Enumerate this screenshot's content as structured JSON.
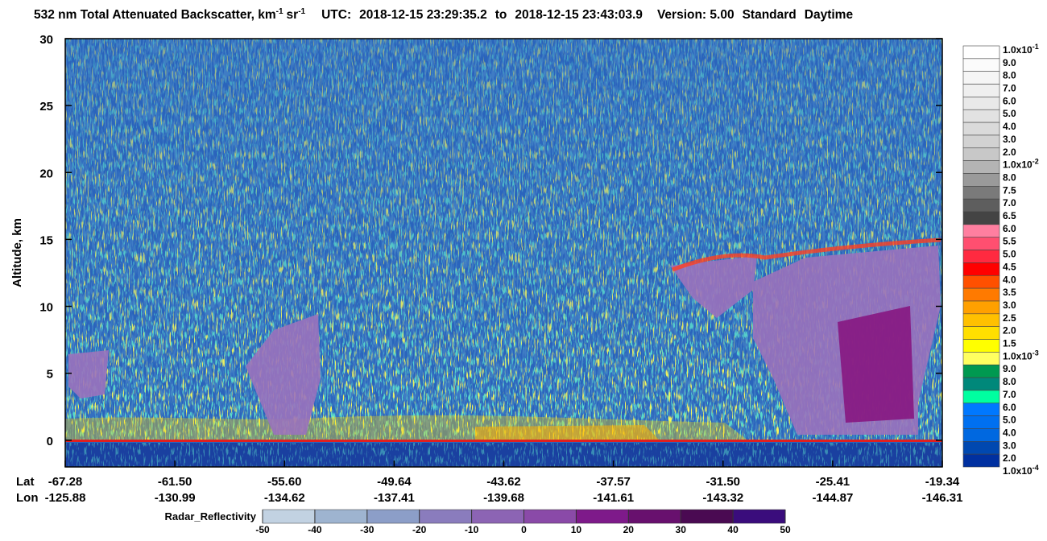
{
  "chart_data": {
    "type": "curtain",
    "title": {
      "main": "532 nm Total Attenuated Backscatter, km",
      "sup1": "-1",
      "unit2": "sr",
      "sup2": "-1",
      "utc": "UTC:",
      "start": "2018-12-15 23:29:35.2",
      "to": "to",
      "end": "2018-12-15 23:43:03.9",
      "version": "Version: 5.00",
      "product": "Standard",
      "daytime": "Daytime"
    },
    "ylabel": "Altitude, km",
    "ylim": [
      -2,
      30
    ],
    "yticks": [
      0,
      5,
      10,
      15,
      20,
      25,
      30
    ],
    "lat_label": "Lat",
    "lon_label": "Lon",
    "lat": [
      "-67.28",
      "-61.50",
      "-55.60",
      "-49.64",
      "-43.62",
      "-37.57",
      "-31.50",
      "-25.41",
      "-19.34"
    ],
    "lon": [
      "-125.88",
      "-130.99",
      "-134.62",
      "-137.41",
      "-139.68",
      "-141.61",
      "-143.32",
      "-144.87",
      "-146.31"
    ],
    "colorbar": {
      "labels": [
        {
          "base": "1.0x10",
          "sup": "-1"
        },
        "9.0",
        "8.0",
        "7.0",
        "6.0",
        "5.0",
        "4.0",
        "3.0",
        "2.0",
        {
          "base": "1.0x10",
          "sup": "-2"
        },
        "8.0",
        "7.5",
        "7.0",
        "6.5",
        "6.0",
        "5.5",
        "5.0",
        "4.5",
        "4.0",
        "3.5",
        "3.0",
        "2.5",
        "2.0",
        "1.5",
        {
          "base": "1.0x10",
          "sup": "-3"
        },
        "9.0",
        "8.0",
        "7.0",
        "6.0",
        "5.0",
        "4.0",
        "3.0",
        "2.0",
        {
          "base": "1.0x10",
          "sup": "-4"
        }
      ],
      "colors": [
        "#ffffff",
        "#fbfbfb",
        "#f5f5f5",
        "#efefef",
        "#e9e9e9",
        "#e2e2e2",
        "#dadada",
        "#d2d2d2",
        "#c8c8c8",
        "#b4b4b4",
        "#9a9a9a",
        "#7a7a7a",
        "#5e5e5e",
        "#444444",
        "#ff7fa0",
        "#ff4f70",
        "#ff2a40",
        "#ff0000",
        "#ff5000",
        "#ff7a00",
        "#ffa000",
        "#ffc000",
        "#ffdf00",
        "#ffff00",
        "#ffff60",
        "#009950",
        "#00887a",
        "#00ffa0",
        "#0078ff",
        "#0070f0",
        "#0068e0",
        "#0048b0",
        "#0030a0"
      ]
    },
    "radar": {
      "label": "Radar_Reflectivity",
      "ticks": [
        -50,
        -40,
        -30,
        -20,
        -10,
        0,
        10,
        20,
        30,
        40,
        50
      ],
      "colors": [
        "#c2d2e2",
        "#9eb4d0",
        "#8c9ec8",
        "#8a7cbd",
        "#8c64b4",
        "#8a4aa8",
        "#7e1a8a",
        "#68106e",
        "#4a0a52",
        "#3a0c7c"
      ]
    }
  }
}
